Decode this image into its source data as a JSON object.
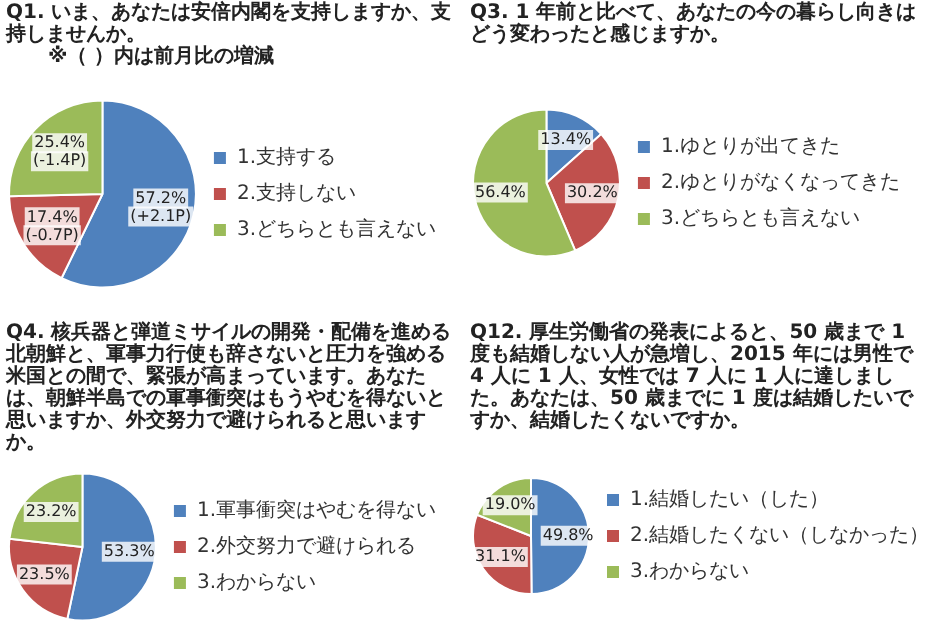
{
  "chart_data": [
    {
      "type": "pie",
      "title": "Q1. いま、あなたは安倍内閣を支持しますか、支持しませんか。",
      "subtitle": "※（ ）内は前月比の増減",
      "categories": [
        "1.支持する",
        "2.支持しない",
        "3.どちらとも言えない"
      ],
      "values": [
        57.2,
        17.4,
        25.4
      ],
      "colors": [
        "#4f81bd",
        "#c0504d",
        "#9bbb59"
      ],
      "value_labels": [
        "57.2%\n(+2.1P)",
        "17.4%\n(-0.7P)",
        "25.4%\n(-1.4P)"
      ],
      "legend": "right"
    },
    {
      "type": "pie",
      "title": "Q3. 1 年前と比べて、あなたの今の暮らし向きはどう変わったと感じますか。",
      "categories": [
        "1.ゆとりが出てきた",
        "2.ゆとりがなくなってきた",
        "3.どちらとも言えない"
      ],
      "values": [
        13.4,
        30.2,
        56.4
      ],
      "colors": [
        "#4f81bd",
        "#c0504d",
        "#9bbb59"
      ],
      "value_labels": [
        "13.4%",
        "30.2%",
        "56.4%"
      ],
      "legend": "right"
    },
    {
      "type": "pie",
      "title": "Q4. 核兵器と弾道ミサイルの開発・配備を進める北朝鮮と、軍事力行使も辞さないと圧力を強める米国との間で、緊張が高まっています。あなたは、朝鮮半島での軍事衝突はもうやむを得ないと思いますか、外交努力で避けられると思いますか。",
      "categories": [
        "1.軍事衝突はやむを得ない",
        "2.外交努力で避けられる",
        "3.わからない"
      ],
      "values": [
        53.3,
        23.5,
        23.2
      ],
      "colors": [
        "#4f81bd",
        "#c0504d",
        "#9bbb59"
      ],
      "value_labels": [
        "53.3%",
        "23.5%",
        "23.2%"
      ],
      "legend": "right"
    },
    {
      "type": "pie",
      "title": "Q12. 厚生労働省の発表によると、50 歳まで 1 度も結婚しない人が急増し、2015 年には男性で 4 人に 1 人、女性では 7 人に 1 人に達しました。あなたは、50 歳までに 1 度は結婚したいですか、結婚したくないですか。",
      "categories": [
        "1.結婚したい（した）",
        "2.結婚したくない（しなかった）",
        "3.わからない"
      ],
      "values": [
        49.8,
        31.1,
        19.0
      ],
      "colors": [
        "#4f81bd",
        "#c0504d",
        "#9bbb59"
      ],
      "value_labels": [
        "49.8%",
        "31.1%",
        "19.0%"
      ],
      "legend": "right"
    }
  ]
}
